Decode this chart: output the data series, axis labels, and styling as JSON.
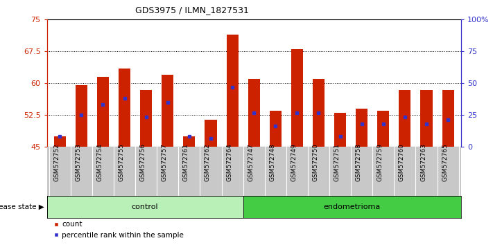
{
  "title": "GDS3975 / ILMN_1827531",
  "samples": [
    "GSM572752",
    "GSM572753",
    "GSM572754",
    "GSM572755",
    "GSM572756",
    "GSM572757",
    "GSM572761",
    "GSM572762",
    "GSM572764",
    "GSM572747",
    "GSM572748",
    "GSM572749",
    "GSM572750",
    "GSM572751",
    "GSM572758",
    "GSM572759",
    "GSM572760",
    "GSM572763",
    "GSM572765"
  ],
  "bar_heights": [
    47.5,
    59.5,
    61.5,
    63.5,
    58.5,
    62.0,
    47.5,
    51.5,
    71.5,
    61.0,
    53.5,
    68.0,
    61.0,
    53.0,
    54.0,
    53.5,
    58.5,
    58.5,
    58.5
  ],
  "blue_dot_positions": [
    47.5,
    52.5,
    55.0,
    56.5,
    52.0,
    55.5,
    47.5,
    47.0,
    59.0,
    53.0,
    50.0,
    53.0,
    53.0,
    47.5,
    50.5,
    50.5,
    52.0,
    50.5,
    51.5
  ],
  "control_count": 9,
  "endometrioma_count": 10,
  "ymin": 45,
  "ymax": 75,
  "yticks": [
    45,
    52.5,
    60,
    67.5,
    75
  ],
  "right_ticks_pct": [
    0,
    25,
    50,
    75,
    100
  ],
  "bar_color": "#cc2200",
  "dot_color": "#3333cc",
  "bg_color": "#f0f0f0",
  "control_color": "#b8f0b8",
  "endometrioma_color": "#44cc44",
  "xtick_bg_color": "#c8c8c8",
  "control_label": "control",
  "endometrioma_label": "endometrioma",
  "disease_state_label": "disease state",
  "legend_count": "count",
  "legend_percentile": "percentile rank within the sample"
}
